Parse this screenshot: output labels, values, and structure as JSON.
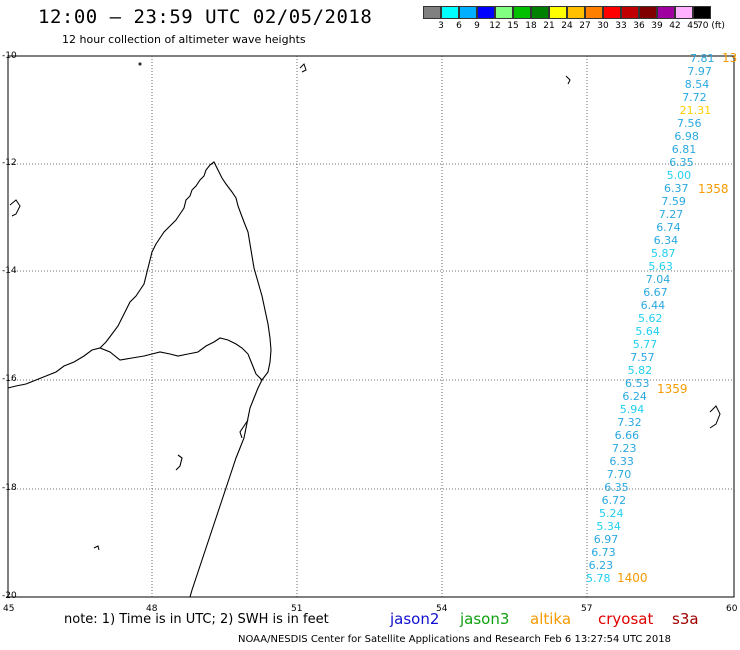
{
  "header": {
    "title": "12:00 – 23:59 UTC 02/05/2018",
    "subtitle": "12 hour collection of altimeter wave heights"
  },
  "legend": {
    "swatches": [
      "#808080",
      "#00ffff",
      "#00b0ff",
      "#0000ff",
      "#80ff80",
      "#00c000",
      "#008000",
      "#ffff00",
      "#ffc000",
      "#ff8000",
      "#ff0000",
      "#c00000",
      "#800000",
      "#a000a0",
      "#ffb0ff",
      "#000000"
    ],
    "labels": [
      "3",
      "6",
      "9",
      "12",
      "15",
      "18",
      "21",
      "24",
      "27",
      "30",
      "33",
      "36",
      "39",
      "42",
      "45",
      "70 (ft)"
    ]
  },
  "axes": {
    "y_labels": [
      "-10",
      "-12",
      "-14",
      "-16",
      "-18",
      "-20"
    ],
    "x_labels": [
      "45",
      "48",
      "51",
      "54",
      "57",
      "60"
    ]
  },
  "track": {
    "values": [
      {
        "v": "7.81",
        "c": "#2aa8e0"
      },
      {
        "v": "7.97",
        "c": "#2aa8e0"
      },
      {
        "v": "8.54",
        "c": "#2aa8e0"
      },
      {
        "v": "7.72",
        "c": "#2aa8e0"
      },
      {
        "v": "21.31",
        "c": "#ffd000"
      },
      {
        "v": "7.56",
        "c": "#2aa8e0"
      },
      {
        "v": "6.98",
        "c": "#2aa8e0"
      },
      {
        "v": "6.81",
        "c": "#2aa8e0"
      },
      {
        "v": "6.35",
        "c": "#2aa8e0"
      },
      {
        "v": "5.00",
        "c": "#20d0f0"
      },
      {
        "v": "6.37",
        "c": "#2aa8e0"
      },
      {
        "v": "7.59",
        "c": "#2aa8e0"
      },
      {
        "v": "7.27",
        "c": "#2aa8e0"
      },
      {
        "v": "6.74",
        "c": "#2aa8e0"
      },
      {
        "v": "6.34",
        "c": "#2aa8e0"
      },
      {
        "v": "5.87",
        "c": "#20d0f0"
      },
      {
        "v": "5.63",
        "c": "#20d0f0"
      },
      {
        "v": "7.04",
        "c": "#2aa8e0"
      },
      {
        "v": "6.67",
        "c": "#2aa8e0"
      },
      {
        "v": "6.44",
        "c": "#2aa8e0"
      },
      {
        "v": "5.62",
        "c": "#20d0f0"
      },
      {
        "v": "5.64",
        "c": "#20d0f0"
      },
      {
        "v": "5.77",
        "c": "#20d0f0"
      },
      {
        "v": "7.57",
        "c": "#2aa8e0"
      },
      {
        "v": "5.82",
        "c": "#20d0f0"
      },
      {
        "v": "6.53",
        "c": "#2aa8e0"
      },
      {
        "v": "6.24",
        "c": "#2aa8e0"
      },
      {
        "v": "5.94",
        "c": "#20d0f0"
      },
      {
        "v": "7.32",
        "c": "#2aa8e0"
      },
      {
        "v": "6.66",
        "c": "#2aa8e0"
      },
      {
        "v": "7.23",
        "c": "#2aa8e0"
      },
      {
        "v": "6.33",
        "c": "#2aa8e0"
      },
      {
        "v": "7.70",
        "c": "#2aa8e0"
      },
      {
        "v": "6.35",
        "c": "#2aa8e0"
      },
      {
        "v": "6.72",
        "c": "#2aa8e0"
      },
      {
        "v": "5.24",
        "c": "#20d0f0"
      },
      {
        "v": "5.34",
        "c": "#20d0f0"
      },
      {
        "v": "6.97",
        "c": "#2aa8e0"
      },
      {
        "v": "6.73",
        "c": "#2aa8e0"
      },
      {
        "v": "6.23",
        "c": "#2aa8e0"
      },
      {
        "v": "5.78",
        "c": "#20d0f0"
      }
    ],
    "times": [
      "13",
      "1358",
      "1359",
      "1400"
    ],
    "time_color": "#f59a00"
  },
  "note": "note: 1) Time is in UTC; 2) SWH is in feet",
  "satellites": [
    {
      "name": "jason2",
      "color": "#1010d0"
    },
    {
      "name": "jason3",
      "color": "#10a010"
    },
    {
      "name": "altika",
      "color": "#f59a00"
    },
    {
      "name": "cryosat",
      "color": "#e00000"
    },
    {
      "name": "s3a",
      "color": "#a00000"
    }
  ],
  "footer": "NOAA/NESDIS Center for Satellite Applications and Research   Feb  6 13:27:54 UTC 2018"
}
